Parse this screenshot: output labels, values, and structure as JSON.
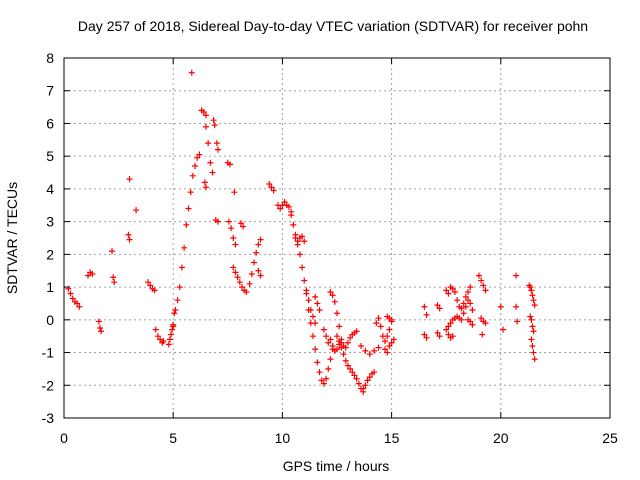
{
  "chart_data": {
    "type": "scatter",
    "title": "Day 257 of 2018, Sidereal Day-to-day VTEC variation (SDTVAR) for receiver pohn",
    "xlabel": "GPS time / hours",
    "ylabel": "SDTVAR / TECUs",
    "xlim": [
      0,
      25
    ],
    "ylim": [
      -3,
      8
    ],
    "xticks": [
      0,
      5,
      10,
      15,
      20,
      25
    ],
    "yticks": [
      -3,
      -2,
      -1,
      0,
      1,
      2,
      3,
      4,
      5,
      6,
      7,
      8
    ],
    "grid": true,
    "marker": "+",
    "series_color": "#ff0000",
    "segments": [
      {
        "x": [
          0.2,
          0.3,
          0.4,
          0.5,
          0.6,
          0.7
        ],
        "y": [
          0.95,
          0.8,
          0.65,
          0.55,
          0.5,
          0.4
        ]
      },
      {
        "x": [
          1.1,
          1.2,
          1.3
        ],
        "y": [
          1.35,
          1.45,
          1.4
        ]
      },
      {
        "x": [
          1.6,
          1.65,
          1.7
        ],
        "y": [
          -0.05,
          -0.25,
          -0.35
        ]
      },
      {
        "x": [
          2.2,
          2.25,
          2.3
        ],
        "y": [
          2.1,
          1.3,
          1.15
        ]
      },
      {
        "x": [
          2.95,
          3.0
        ],
        "y": [
          2.6,
          2.45
        ]
      },
      {
        "x": [
          3.0
        ],
        "y": [
          4.3
        ]
      },
      {
        "x": [
          3.3
        ],
        "y": [
          3.35
        ]
      },
      {
        "x": [
          3.85,
          3.95,
          4.05,
          4.15
        ],
        "y": [
          1.15,
          1.05,
          0.95,
          0.9
        ]
      },
      {
        "x": [
          4.2,
          4.3,
          4.4,
          4.5,
          4.55
        ],
        "y": [
          -0.3,
          -0.5,
          -0.6,
          -0.7,
          -0.65
        ]
      },
      {
        "x": [
          4.8,
          4.85,
          4.9,
          4.95,
          5.0,
          5.05
        ],
        "y": [
          -0.75,
          -0.6,
          -0.45,
          -0.3,
          -0.15,
          0.2
        ]
      },
      {
        "x": [
          5.0,
          5.1,
          5.2,
          5.3,
          5.4,
          5.5,
          5.6,
          5.7,
          5.8,
          5.9,
          6.0,
          6.1,
          6.2
        ],
        "y": [
          -0.2,
          0.3,
          0.6,
          1.0,
          1.6,
          2.2,
          2.9,
          3.4,
          3.9,
          4.4,
          4.7,
          4.95,
          5.05
        ]
      },
      {
        "x": [
          5.85
        ],
        "y": [
          7.55
        ]
      },
      {
        "x": [
          6.3,
          6.4,
          6.5
        ],
        "y": [
          6.4,
          6.35,
          6.25
        ]
      },
      {
        "x": [
          6.5,
          6.6,
          6.7,
          6.8
        ],
        "y": [
          5.9,
          5.4,
          4.8,
          4.5
        ]
      },
      {
        "x": [
          6.85,
          6.9
        ],
        "y": [
          6.1,
          5.95
        ]
      },
      {
        "x": [
          6.45,
          6.5
        ],
        "y": [
          4.2,
          4.05
        ]
      },
      {
        "x": [
          7.0,
          7.05
        ],
        "y": [
          5.4,
          5.2
        ]
      },
      {
        "x": [
          6.95,
          7.05
        ],
        "y": [
          3.05,
          3.0
        ]
      },
      {
        "x": [
          7.5,
          7.6
        ],
        "y": [
          4.8,
          4.75
        ]
      },
      {
        "x": [
          7.55,
          7.65,
          7.75,
          7.85
        ],
        "y": [
          3.0,
          2.8,
          2.5,
          2.3
        ]
      },
      {
        "x": [
          7.75,
          7.85,
          7.95,
          8.05,
          8.15,
          8.25,
          8.35
        ],
        "y": [
          1.6,
          1.45,
          1.3,
          1.15,
          1.0,
          0.9,
          0.85
        ]
      },
      {
        "x": [
          7.8
        ],
        "y": [
          3.9
        ]
      },
      {
        "x": [
          8.1,
          8.2
        ],
        "y": [
          2.95,
          2.85
        ]
      },
      {
        "x": [
          8.5,
          8.6,
          8.7,
          8.8,
          8.9,
          9.0
        ],
        "y": [
          1.1,
          1.4,
          1.75,
          2.05,
          2.3,
          2.45
        ]
      },
      {
        "x": [
          8.9,
          9.0
        ],
        "y": [
          1.5,
          1.35
        ]
      },
      {
        "x": [
          9.4,
          9.5,
          9.6
        ],
        "y": [
          4.15,
          4.05,
          3.95
        ]
      },
      {
        "x": [
          9.8,
          9.9,
          10.0,
          10.1,
          10.2,
          10.3,
          10.4
        ],
        "y": [
          3.5,
          3.4,
          3.5,
          3.6,
          3.5,
          3.45,
          3.3
        ]
      },
      {
        "x": [
          10.4,
          10.5,
          10.6,
          10.7,
          10.8,
          10.9,
          11.0,
          11.1,
          11.2,
          11.3,
          11.4,
          11.5,
          11.6,
          11.7,
          11.8,
          11.9,
          12.0,
          12.1,
          12.2,
          12.3
        ],
        "y": [
          3.2,
          2.9,
          2.6,
          2.3,
          2.0,
          1.6,
          1.2,
          0.8,
          0.3,
          -0.1,
          -0.5,
          -0.9,
          -1.3,
          -1.6,
          -1.85,
          -1.95,
          -1.8,
          -1.5,
          -1.2,
          -0.9
        ]
      },
      {
        "x": [
          10.6,
          10.7,
          10.8,
          10.9,
          11.0
        ],
        "y": [
          2.5,
          2.4,
          2.5,
          2.55,
          2.4
        ]
      },
      {
        "x": [
          11.1,
          11.2,
          11.3,
          11.4,
          11.5
        ],
        "y": [
          0.9,
          0.6,
          0.3,
          0.1,
          -0.1
        ]
      },
      {
        "x": [
          11.5,
          11.6,
          11.7
        ],
        "y": [
          0.7,
          0.5,
          0.3
        ]
      },
      {
        "x": [
          11.9,
          12.0,
          12.1,
          12.2
        ],
        "y": [
          -0.3,
          -0.5,
          -0.7,
          -0.6
        ]
      },
      {
        "x": [
          12.2,
          12.3,
          12.4,
          12.5,
          12.6,
          12.7
        ],
        "y": [
          0.85,
          0.75,
          0.55,
          0.2,
          -0.2,
          -0.6
        ]
      },
      {
        "x": [
          12.3,
          12.4,
          12.5,
          12.6,
          12.7,
          12.8,
          12.9,
          13.0,
          13.1,
          13.2,
          13.3,
          13.4
        ],
        "y": [
          -0.8,
          -0.95,
          -0.9,
          -0.75,
          -0.7,
          -0.8,
          -0.85,
          -0.7,
          -0.55,
          -0.45,
          -0.4,
          -0.35
        ]
      },
      {
        "x": [
          12.5,
          12.6,
          12.7,
          12.8,
          12.9,
          13.0,
          13.1,
          13.2,
          13.3,
          13.4,
          13.5,
          13.6,
          13.7
        ],
        "y": [
          -0.5,
          -0.65,
          -0.85,
          -1.05,
          -1.25,
          -1.4,
          -1.5,
          -1.6,
          -1.7,
          -1.8,
          -1.95,
          -2.1,
          -2.2
        ]
      },
      {
        "x": [
          13.7,
          13.8,
          13.9,
          14.0,
          14.1,
          14.2
        ],
        "y": [
          -2.1,
          -2.0,
          -1.85,
          -1.75,
          -1.65,
          -1.6
        ]
      },
      {
        "x": [
          13.6,
          13.8,
          14.0,
          14.2,
          14.4
        ],
        "y": [
          -0.8,
          -0.95,
          -1.05,
          -0.95,
          -0.85
        ]
      },
      {
        "x": [
          14.3,
          14.4,
          14.5,
          14.6,
          14.7,
          14.8,
          14.9,
          15.0
        ],
        "y": [
          -0.1,
          0.05,
          -0.2,
          -0.5,
          -0.65,
          -0.5,
          -0.3,
          -0.05
        ]
      },
      {
        "x": [
          14.7,
          14.8,
          14.9,
          15.0,
          15.1
        ],
        "y": [
          -0.9,
          -1.0,
          -0.8,
          -0.7,
          -0.6
        ]
      },
      {
        "x": [
          14.8,
          14.9,
          15.0
        ],
        "y": [
          0.1,
          0.05,
          0.0
        ]
      },
      {
        "x": [
          16.5,
          16.6
        ],
        "y": [
          0.4,
          0.15
        ]
      },
      {
        "x": [
          16.5,
          16.6
        ],
        "y": [
          -0.45,
          -0.55
        ]
      },
      {
        "x": [
          17.1,
          17.2
        ],
        "y": [
          0.45,
          0.35
        ]
      },
      {
        "x": [
          17.1,
          17.2
        ],
        "y": [
          -0.4,
          -0.5
        ]
      },
      {
        "x": [
          17.5,
          17.6,
          17.7,
          17.8,
          17.9,
          18.0,
          18.1,
          18.2,
          18.3,
          18.4,
          18.5,
          18.6
        ],
        "y": [
          0.9,
          0.8,
          1.0,
          0.95,
          0.85,
          0.6,
          0.4,
          0.35,
          0.5,
          0.7,
          0.85,
          1.0
        ]
      },
      {
        "x": [
          17.5,
          17.6,
          17.7,
          17.8,
          17.9,
          18.0,
          18.1,
          18.2
        ],
        "y": [
          -0.3,
          -0.2,
          -0.1,
          0.0,
          0.05,
          0.1,
          0.05,
          0.0
        ]
      },
      {
        "x": [
          17.6,
          17.7,
          17.8
        ],
        "y": [
          -0.45,
          -0.55,
          -0.5
        ]
      },
      {
        "x": [
          18.3,
          18.4,
          18.5,
          18.6,
          18.7
        ],
        "y": [
          0.2,
          0.4,
          0.6,
          0.5,
          0.3
        ]
      },
      {
        "x": [
          18.5,
          18.6,
          18.7
        ],
        "y": [
          0.0,
          -0.05,
          -0.15
        ]
      },
      {
        "x": [
          19.0,
          19.1,
          19.2,
          19.3
        ],
        "y": [
          1.35,
          1.2,
          1.05,
          0.9
        ]
      },
      {
        "x": [
          19.1,
          19.2,
          19.3
        ],
        "y": [
          0.05,
          -0.05,
          -0.1
        ]
      },
      {
        "x": [
          19.15
        ],
        "y": [
          -0.45
        ]
      },
      {
        "x": [
          20.0
        ],
        "y": [
          0.4
        ]
      },
      {
        "x": [
          20.1
        ],
        "y": [
          -0.3
        ]
      },
      {
        "x": [
          20.7
        ],
        "y": [
          1.35
        ]
      },
      {
        "x": [
          20.7
        ],
        "y": [
          0.4
        ]
      },
      {
        "x": [
          20.75
        ],
        "y": [
          -0.05
        ]
      },
      {
        "x": [
          21.3,
          21.35,
          21.4,
          21.45,
          21.5,
          21.55
        ],
        "y": [
          1.05,
          1.0,
          0.9,
          0.75,
          0.6,
          0.45
        ]
      },
      {
        "x": [
          21.35,
          21.4,
          21.45,
          21.5
        ],
        "y": [
          0.1,
          0.0,
          -0.2,
          -0.35
        ]
      },
      {
        "x": [
          21.4,
          21.45,
          21.5,
          21.55
        ],
        "y": [
          -0.6,
          -0.8,
          -1.0,
          -1.2
        ]
      }
    ]
  }
}
